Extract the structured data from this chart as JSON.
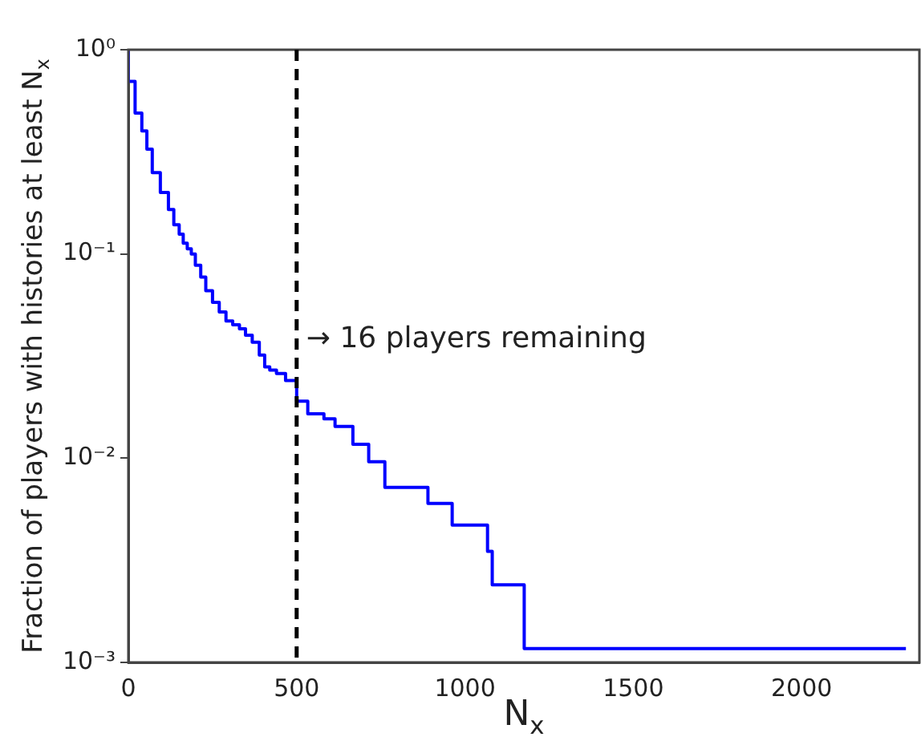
{
  "chart_data": {
    "type": "step",
    "xlabel": "N$_{x}$",
    "ylabel": "Fraction of players with histories at least N$_{x}$",
    "x": [
      0,
      20,
      40,
      55,
      71,
      95,
      119,
      135,
      151,
      163,
      175,
      187,
      199,
      215,
      230,
      250,
      270,
      290,
      310,
      330,
      348,
      368,
      389,
      405,
      420,
      440,
      467,
      500,
      533,
      581,
      614,
      667,
      714,
      762,
      890,
      962,
      1067,
      1081,
      1176,
      1186,
      2310
    ],
    "series": [
      {
        "color": "#0000ff",
        "values": [
          1,
          0.7,
          0.49,
          0.4,
          0.326,
          0.25,
          0.2,
          0.165,
          0.139,
          0.125,
          0.113,
          0.106,
          0.1,
          0.088,
          0.077,
          0.066,
          0.058,
          0.052,
          0.047,
          0.045,
          0.043,
          0.04,
          0.037,
          0.032,
          0.028,
          0.027,
          0.026,
          0.024,
          0.019,
          0.0165,
          0.0156,
          0.0143,
          0.0117,
          0.0096,
          0.0072,
          0.006,
          0.0047,
          0.0035,
          0.0024,
          0.00117,
          0.00117
        ]
      }
    ],
    "log": "y",
    "xlim": [
      0,
      2350
    ],
    "xticks": [
      0,
      500,
      1000,
      1500,
      2000
    ],
    "ylim": [
      0.001,
      1
    ],
    "yticks": [
      {
        "value": 0.001,
        "label": "10⁻³"
      },
      {
        "value": 0.01,
        "label": "10⁻²"
      },
      {
        "value": 0.1,
        "label": "10⁻¹"
      },
      {
        "value": 1,
        "label": "10⁰"
      }
    ],
    "ref_lines": [
      {
        "axis": "x",
        "value": 500,
        "color": "#000000",
        "line_style": "dashed"
      }
    ],
    "annotations": [
      {
        "text": "→ 16 players remaining",
        "x": 500,
        "y": 0.039
      }
    ],
    "grid": false,
    "legend": false
  }
}
